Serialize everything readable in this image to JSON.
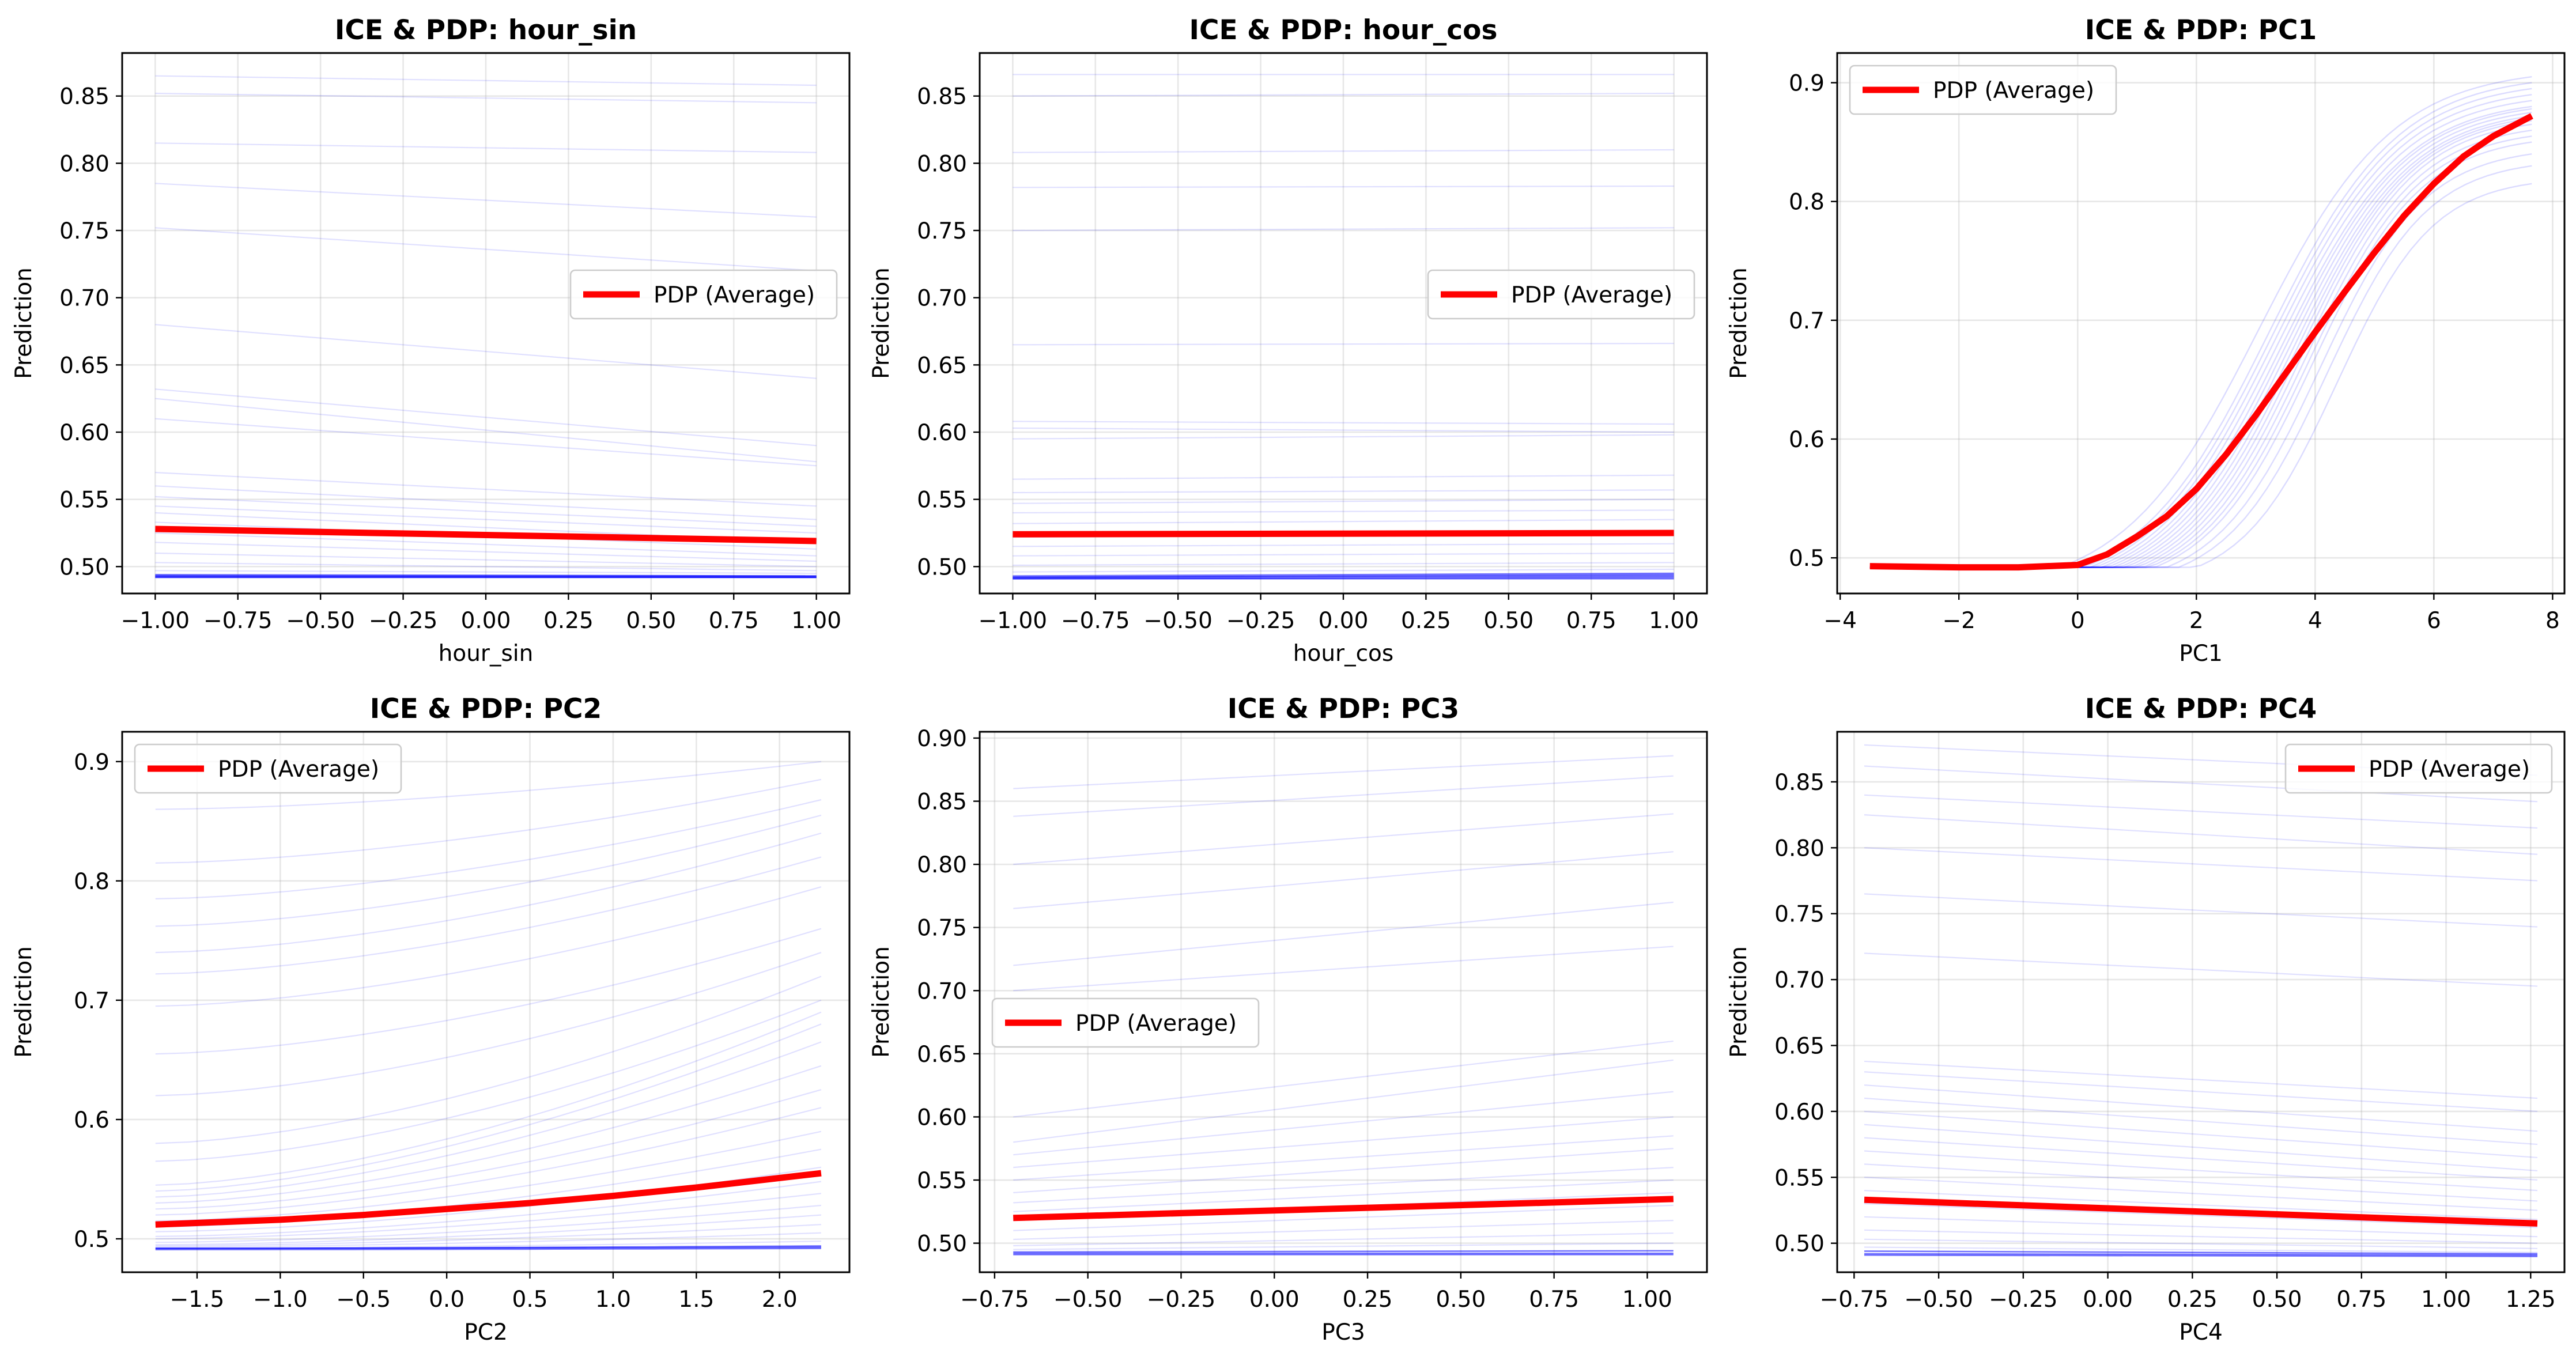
{
  "figure": {
    "ice_color": "#0000ff",
    "pdp_color": "#ff0000",
    "background": "#ffffff"
  },
  "chart_data": [
    {
      "type": "line",
      "title": "ICE & PDP: hour_sin",
      "xlabel": "hour_sin",
      "ylabel": "Prediction",
      "xlim": [
        -1.1,
        1.1
      ],
      "ylim": [
        0.48,
        0.882
      ],
      "xticks": [
        -1.0,
        -0.75,
        -0.5,
        -0.25,
        0.0,
        0.25,
        0.5,
        0.75,
        1.0
      ],
      "xticklabels": [
        "−1.00",
        "−0.75",
        "−0.50",
        "−0.25",
        "0.00",
        "0.25",
        "0.50",
        "0.75",
        "1.00"
      ],
      "yticks": [
        0.5,
        0.55,
        0.6,
        0.65,
        0.7,
        0.75,
        0.8,
        0.85
      ],
      "yticklabels": [
        "0.50",
        "0.55",
        "0.60",
        "0.65",
        "0.70",
        "0.75",
        "0.80",
        "0.85"
      ],
      "grid": true,
      "legend": {
        "position": "center-right",
        "label": "PDP (Average)"
      },
      "pdp": {
        "name": "PDP (Average)",
        "x": [
          -1.0,
          1.0
        ],
        "y": [
          0.528,
          0.519
        ]
      },
      "ice_lines": [
        [
          0.865,
          0.858
        ],
        [
          0.852,
          0.845
        ],
        [
          0.815,
          0.808
        ],
        [
          0.785,
          0.76
        ],
        [
          0.752,
          0.72
        ],
        [
          0.68,
          0.64
        ],
        [
          0.632,
          0.59
        ],
        [
          0.625,
          0.578
        ],
        [
          0.61,
          0.575
        ],
        [
          0.57,
          0.545
        ],
        [
          0.56,
          0.535
        ],
        [
          0.552,
          0.53
        ],
        [
          0.545,
          0.525
        ],
        [
          0.54,
          0.518
        ],
        [
          0.533,
          0.513
        ],
        [
          0.525,
          0.508
        ],
        [
          0.518,
          0.504
        ],
        [
          0.51,
          0.5
        ],
        [
          0.503,
          0.497
        ],
        [
          0.497,
          0.495
        ],
        [
          0.493,
          0.493
        ],
        [
          0.492,
          0.492
        ],
        [
          0.492,
          0.492
        ],
        [
          0.493,
          0.492
        ],
        [
          0.494,
          0.493
        ]
      ]
    },
    {
      "type": "line",
      "title": "ICE & PDP: hour_cos",
      "xlabel": "hour_cos",
      "ylabel": "Prediction",
      "xlim": [
        -1.1,
        1.1
      ],
      "ylim": [
        0.48,
        0.882
      ],
      "xticks": [
        -1.0,
        -0.75,
        -0.5,
        -0.25,
        0.0,
        0.25,
        0.5,
        0.75,
        1.0
      ],
      "xticklabels": [
        "−1.00",
        "−0.75",
        "−0.50",
        "−0.25",
        "0.00",
        "0.25",
        "0.50",
        "0.75",
        "1.00"
      ],
      "yticks": [
        0.5,
        0.55,
        0.6,
        0.65,
        0.7,
        0.75,
        0.8,
        0.85
      ],
      "yticklabels": [
        "0.50",
        "0.55",
        "0.60",
        "0.65",
        "0.70",
        "0.75",
        "0.80",
        "0.85"
      ],
      "grid": true,
      "legend": {
        "position": "center-right",
        "label": "PDP (Average)"
      },
      "pdp": {
        "name": "PDP (Average)",
        "x": [
          -1.0,
          1.0
        ],
        "y": [
          0.524,
          0.525
        ]
      },
      "ice_lines": [
        [
          0.866,
          0.866
        ],
        [
          0.85,
          0.852
        ],
        [
          0.808,
          0.81
        ],
        [
          0.782,
          0.783
        ],
        [
          0.75,
          0.752
        ],
        [
          0.665,
          0.666
        ],
        [
          0.608,
          0.606
        ],
        [
          0.603,
          0.6
        ],
        [
          0.595,
          0.598
        ],
        [
          0.565,
          0.568
        ],
        [
          0.555,
          0.557
        ],
        [
          0.547,
          0.55
        ],
        [
          0.54,
          0.542
        ],
        [
          0.532,
          0.535
        ],
        [
          0.522,
          0.525
        ],
        [
          0.515,
          0.517
        ],
        [
          0.508,
          0.51
        ],
        [
          0.501,
          0.503
        ],
        [
          0.496,
          0.498
        ],
        [
          0.493,
          0.495
        ],
        [
          0.492,
          0.494
        ],
        [
          0.492,
          0.493
        ],
        [
          0.491,
          0.492
        ],
        [
          0.491,
          0.491
        ]
      ]
    },
    {
      "type": "line",
      "title": "ICE & PDP: PC1",
      "xlabel": "PC1",
      "ylabel": "Prediction",
      "xlim": [
        -4.05,
        8.2
      ],
      "ylim": [
        0.47,
        0.925
      ],
      "xticks": [
        -4,
        -2,
        0,
        2,
        4,
        6,
        8
      ],
      "xticklabels": [
        "−4",
        "−2",
        "0",
        "2",
        "4",
        "6",
        "8"
      ],
      "yticks": [
        0.5,
        0.6,
        0.7,
        0.8,
        0.9
      ],
      "yticklabels": [
        "0.5",
        "0.6",
        "0.7",
        "0.8",
        "0.9"
      ],
      "grid": true,
      "legend": {
        "position": "top-left",
        "label": "PDP (Average)"
      },
      "pdp": {
        "name": "PDP (Average)",
        "x": [
          -3.5,
          -2,
          -1,
          0,
          0.5,
          1,
          1.5,
          2,
          2.5,
          3,
          3.5,
          4,
          4.5,
          5,
          5.5,
          6,
          6.5,
          7,
          7.65
        ],
        "y": [
          0.493,
          0.492,
          0.492,
          0.494,
          0.503,
          0.518,
          0.535,
          0.558,
          0.587,
          0.62,
          0.655,
          0.69,
          0.724,
          0.757,
          0.788,
          0.815,
          0.838,
          0.855,
          0.872
        ]
      },
      "ice_params": {
        "x_start": -3.5,
        "x_end": 7.65,
        "base": 0.492,
        "onset": [
          -0.3,
          0.0,
          0.1,
          0.2,
          0.3,
          0.4,
          0.5,
          0.6,
          0.7,
          0.8,
          0.9,
          1.0,
          1.1,
          1.2,
          1.3,
          1.5,
          1.7,
          2.0
        ],
        "end_value": [
          0.905,
          0.9,
          0.895,
          0.89,
          0.885,
          0.88,
          0.878,
          0.875,
          0.872,
          0.87,
          0.868,
          0.865,
          0.86,
          0.855,
          0.85,
          0.84,
          0.83,
          0.815
        ]
      }
    },
    {
      "type": "line",
      "title": "ICE & PDP: PC2",
      "xlabel": "PC2",
      "ylabel": "Prediction",
      "xlim": [
        -1.95,
        2.42
      ],
      "ylim": [
        0.472,
        0.925
      ],
      "xticks": [
        -1.5,
        -1.0,
        -0.5,
        0.0,
        0.5,
        1.0,
        1.5,
        2.0
      ],
      "xticklabels": [
        "−1.5",
        "−1.0",
        "−0.5",
        "0.0",
        "0.5",
        "1.0",
        "1.5",
        "2.0"
      ],
      "yticks": [
        0.5,
        0.6,
        0.7,
        0.8,
        0.9
      ],
      "yticklabels": [
        "0.5",
        "0.6",
        "0.7",
        "0.8",
        "0.9"
      ],
      "grid": true,
      "legend": {
        "position": "top-left",
        "label": "PDP (Average)"
      },
      "pdp": {
        "name": "PDP (Average)",
        "x": [
          -1.75,
          -1.0,
          -0.5,
          0.0,
          0.5,
          1.0,
          1.5,
          2.25
        ],
        "y": [
          0.512,
          0.516,
          0.52,
          0.525,
          0.53,
          0.536,
          0.543,
          0.555
        ]
      },
      "ice_lines": [
        [
          0.86,
          0.9
        ],
        [
          0.815,
          0.885
        ],
        [
          0.785,
          0.868
        ],
        [
          0.762,
          0.855
        ],
        [
          0.74,
          0.84
        ],
        [
          0.722,
          0.82
        ],
        [
          0.695,
          0.795
        ],
        [
          0.655,
          0.76
        ],
        [
          0.62,
          0.74
        ],
        [
          0.58,
          0.72
        ],
        [
          0.565,
          0.7
        ],
        [
          0.545,
          0.69
        ],
        [
          0.54,
          0.68
        ],
        [
          0.535,
          0.665
        ],
        [
          0.53,
          0.645
        ],
        [
          0.525,
          0.625
        ],
        [
          0.52,
          0.61
        ],
        [
          0.515,
          0.59
        ],
        [
          0.51,
          0.575
        ],
        [
          0.506,
          0.56
        ],
        [
          0.502,
          0.548
        ],
        [
          0.5,
          0.538
        ],
        [
          0.497,
          0.528
        ],
        [
          0.495,
          0.52
        ],
        [
          0.494,
          0.512
        ],
        [
          0.493,
          0.505
        ],
        [
          0.492,
          0.498
        ],
        [
          0.492,
          0.494
        ],
        [
          0.492,
          0.493
        ],
        [
          0.491,
          0.492
        ]
      ]
    },
    {
      "type": "line",
      "title": "ICE & PDP: PC3",
      "xlabel": "PC3",
      "ylabel": "Prediction",
      "xlim": [
        -0.79,
        1.16
      ],
      "ylim": [
        0.477,
        0.905
      ],
      "xticks": [
        -0.75,
        -0.5,
        -0.25,
        0.0,
        0.25,
        0.5,
        0.75,
        1.0
      ],
      "xticklabels": [
        "−0.75",
        "−0.50",
        "−0.25",
        "0.00",
        "0.25",
        "0.50",
        "0.75",
        "1.00"
      ],
      "yticks": [
        0.5,
        0.55,
        0.6,
        0.65,
        0.7,
        0.75,
        0.8,
        0.85,
        0.9
      ],
      "yticklabels": [
        "0.50",
        "0.55",
        "0.60",
        "0.65",
        "0.70",
        "0.75",
        "0.80",
        "0.85",
        "0.90"
      ],
      "grid": true,
      "legend": {
        "position": "center-left",
        "label": "PDP (Average)"
      },
      "pdp": {
        "name": "PDP (Average)",
        "x": [
          -0.7,
          1.07
        ],
        "y": [
          0.52,
          0.535
        ]
      },
      "ice_lines": [
        [
          0.86,
          0.886
        ],
        [
          0.838,
          0.87
        ],
        [
          0.8,
          0.84
        ],
        [
          0.765,
          0.81
        ],
        [
          0.72,
          0.77
        ],
        [
          0.7,
          0.735
        ],
        [
          0.6,
          0.66
        ],
        [
          0.58,
          0.645
        ],
        [
          0.57,
          0.62
        ],
        [
          0.56,
          0.6
        ],
        [
          0.55,
          0.585
        ],
        [
          0.54,
          0.575
        ],
        [
          0.532,
          0.56
        ],
        [
          0.525,
          0.55
        ],
        [
          0.518,
          0.54
        ],
        [
          0.51,
          0.53
        ],
        [
          0.503,
          0.518
        ],
        [
          0.498,
          0.508
        ],
        [
          0.495,
          0.5
        ],
        [
          0.493,
          0.494
        ],
        [
          0.492,
          0.492
        ],
        [
          0.491,
          0.491
        ]
      ]
    },
    {
      "type": "line",
      "title": "ICE & PDP: PC4",
      "xlabel": "PC4",
      "ylabel": "Prediction",
      "xlim": [
        -0.8,
        1.35
      ],
      "ylim": [
        0.478,
        0.888
      ],
      "xticks": [
        -0.75,
        -0.5,
        -0.25,
        0.0,
        0.25,
        0.5,
        0.75,
        1.0,
        1.25
      ],
      "xticklabels": [
        "−0.75",
        "−0.50",
        "−0.25",
        "0.00",
        "0.25",
        "0.50",
        "0.75",
        "1.00",
        "1.25"
      ],
      "yticks": [
        0.5,
        0.55,
        0.6,
        0.65,
        0.7,
        0.75,
        0.8,
        0.85
      ],
      "yticklabels": [
        "0.50",
        "0.55",
        "0.60",
        "0.65",
        "0.70",
        "0.75",
        "0.80",
        "0.85"
      ],
      "grid": true,
      "legend": {
        "position": "top-right",
        "label": "PDP (Average)"
      },
      "pdp": {
        "name": "PDP (Average)",
        "x": [
          -0.72,
          1.27
        ],
        "y": [
          0.533,
          0.515
        ]
      },
      "ice_lines": [
        [
          0.878,
          0.855
        ],
        [
          0.862,
          0.835
        ],
        [
          0.84,
          0.815
        ],
        [
          0.825,
          0.795
        ],
        [
          0.8,
          0.775
        ],
        [
          0.765,
          0.74
        ],
        [
          0.72,
          0.695
        ],
        [
          0.638,
          0.61
        ],
        [
          0.63,
          0.6
        ],
        [
          0.62,
          0.585
        ],
        [
          0.61,
          0.575
        ],
        [
          0.6,
          0.565
        ],
        [
          0.59,
          0.555
        ],
        [
          0.58,
          0.548
        ],
        [
          0.57,
          0.54
        ],
        [
          0.56,
          0.532
        ],
        [
          0.55,
          0.525
        ],
        [
          0.54,
          0.518
        ],
        [
          0.53,
          0.512
        ],
        [
          0.52,
          0.505
        ],
        [
          0.51,
          0.5
        ],
        [
          0.503,
          0.496
        ],
        [
          0.497,
          0.493
        ],
        [
          0.494,
          0.492
        ],
        [
          0.492,
          0.491
        ],
        [
          0.491,
          0.49
        ]
      ]
    }
  ]
}
